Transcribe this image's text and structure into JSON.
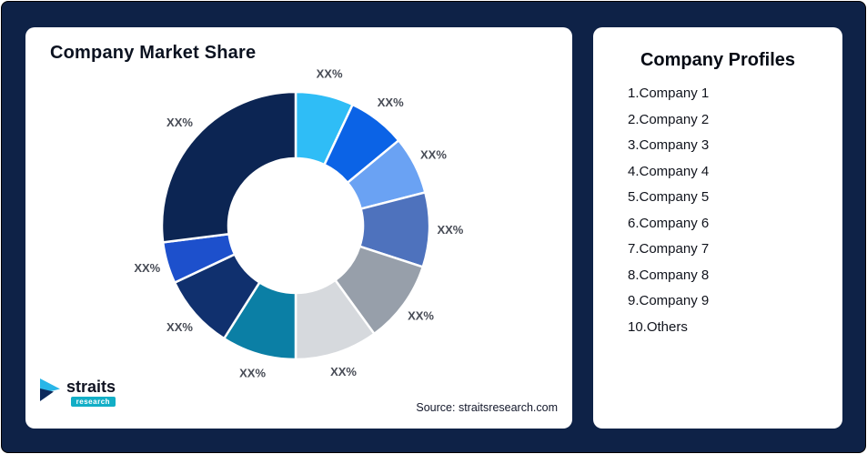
{
  "page": {
    "background": "#0E2247"
  },
  "market_share_card": {
    "title": "Company Market Share",
    "source_note": "Source: straitsresearch.com",
    "logo": {
      "name": "straits",
      "subname": "research"
    }
  },
  "profiles_card": {
    "title": "Company Profiles",
    "items": [
      "1.Company 1",
      "2.Company 2",
      "3.Company 3",
      "4.Company 4",
      "5.Company 5",
      "6.Company 6",
      "7.Company 7",
      "8.Company 8",
      "9.Company 9",
      "10.Others"
    ]
  },
  "chart_data": {
    "type": "pie",
    "subtype": "donut",
    "title": "Company Market Share",
    "labels": [
      "Company 1",
      "Company 2",
      "Company 3",
      "Company 4",
      "Company 5",
      "Company 6",
      "Company 7",
      "Company 8",
      "Company 9",
      "Others"
    ],
    "values": [
      7,
      7,
      7,
      9,
      10,
      10,
      9,
      9,
      5,
      27
    ],
    "data_labels": [
      "XX%",
      "XX%",
      "XX%",
      "XX%",
      "XX%",
      "XX%",
      "XX%",
      "XX%",
      "XX%",
      "XX%"
    ],
    "colors": [
      "#2FBDF6",
      "#0B63E6",
      "#6AA2F3",
      "#4E72BD",
      "#979FAA",
      "#D6D9DD",
      "#0B7FA5",
      "#10306E",
      "#1D50CC",
      "#0C2553"
    ],
    "start_angle_deg": 0,
    "direction": "clockwise",
    "inner_radius_ratio": 0.5,
    "legend": "none",
    "source": "Source: straitsresearch.com"
  }
}
